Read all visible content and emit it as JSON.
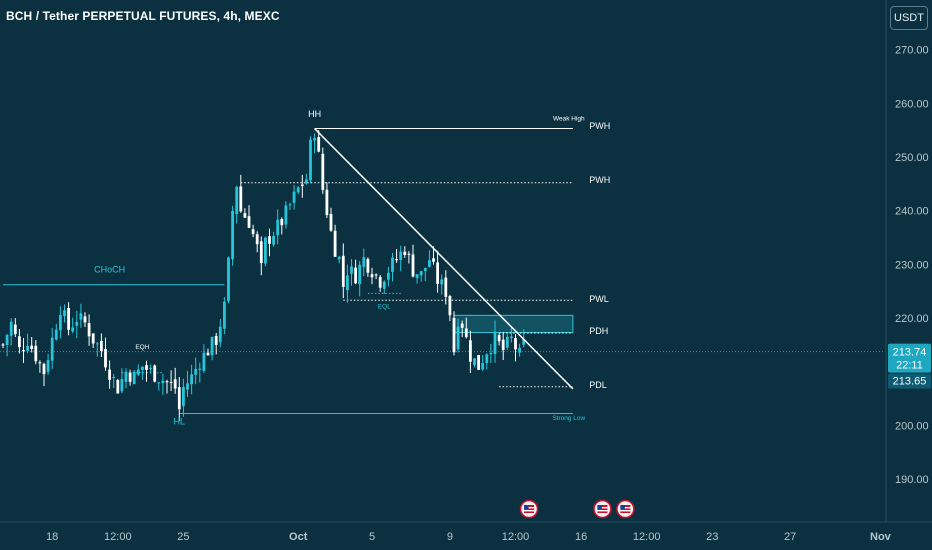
{
  "header": {
    "title": "BCH / Tether PERPETUAL FUTURES, 4h, MEXC",
    "currency": "USDT"
  },
  "colors": {
    "background": "#0b3040",
    "bull": "#26c6da",
    "bear": "#ffffff",
    "text": "#ffffff",
    "axis_text": "#b8c7cc",
    "price_tag_bg": "#1ea7c0",
    "zone_fill": "#1b6f7d"
  },
  "chart_data": {
    "type": "candlestick",
    "y_axis": {
      "ticks": [
        270,
        260,
        250,
        240,
        230,
        220,
        200,
        190
      ],
      "tick_labels": [
        "270.00",
        "260.00",
        "250.00",
        "240.00",
        "230.00",
        "220.00",
        "200.00",
        "190.00"
      ],
      "range": [
        182,
        280
      ]
    },
    "x_axis": {
      "ticks": [
        {
          "label": "18",
          "idx": 12
        },
        {
          "label": "12:00",
          "idx": 28
        },
        {
          "label": "25",
          "idx": 44
        },
        {
          "label": "Oct",
          "idx": 72
        },
        {
          "label": "5",
          "idx": 90
        },
        {
          "label": "9",
          "idx": 109
        },
        {
          "label": "12:00",
          "idx": 125
        },
        {
          "label": "16",
          "idx": 141
        },
        {
          "label": "12:00",
          "idx": 157
        },
        {
          "label": "23",
          "idx": 173
        },
        {
          "label": "27",
          "idx": 192
        },
        {
          "label": "Nov",
          "idx": 214
        }
      ]
    },
    "candle_anchors": [
      [
        0,
        215
      ],
      [
        2,
        219
      ],
      [
        4,
        214
      ],
      [
        6,
        216
      ],
      [
        8,
        213
      ],
      [
        10,
        210
      ],
      [
        12,
        216
      ],
      [
        14,
        222
      ],
      [
        16,
        218
      ],
      [
        18,
        220
      ],
      [
        20,
        219
      ],
      [
        22,
        216
      ],
      [
        24,
        214
      ],
      [
        26,
        210
      ],
      [
        28,
        207
      ],
      [
        30,
        210
      ],
      [
        32,
        209
      ],
      [
        34,
        211
      ],
      [
        36,
        210
      ],
      [
        38,
        209
      ],
      [
        40,
        208
      ],
      [
        42,
        207
      ],
      [
        43,
        203
      ],
      [
        44,
        207
      ],
      [
        46,
        209
      ],
      [
        48,
        212
      ],
      [
        50,
        214
      ],
      [
        52,
        216
      ],
      [
        54,
        222
      ],
      [
        55,
        230
      ],
      [
        56,
        240
      ],
      [
        57,
        245
      ],
      [
        58,
        240
      ],
      [
        60,
        238
      ],
      [
        62,
        233
      ],
      [
        63,
        229
      ],
      [
        64,
        234
      ],
      [
        66,
        236
      ],
      [
        68,
        238
      ],
      [
        70,
        241
      ],
      [
        72,
        244
      ],
      [
        74,
        246
      ],
      [
        75,
        252
      ],
      [
        76,
        255
      ],
      [
        77,
        250
      ],
      [
        78,
        244
      ],
      [
        79,
        240
      ],
      [
        80,
        236
      ],
      [
        81,
        233
      ],
      [
        82,
        231
      ],
      [
        83,
        226
      ],
      [
        84,
        229
      ],
      [
        86,
        228
      ],
      [
        88,
        231
      ],
      [
        90,
        229
      ],
      [
        92,
        227
      ],
      [
        94,
        229
      ],
      [
        96,
        231
      ],
      [
        98,
        233
      ],
      [
        100,
        229
      ],
      [
        102,
        228
      ],
      [
        104,
        231
      ],
      [
        106,
        227
      ],
      [
        108,
        225
      ],
      [
        109,
        221
      ],
      [
        110,
        214
      ],
      [
        111,
        220
      ],
      [
        112,
        219
      ],
      [
        113,
        216
      ],
      [
        114,
        213
      ],
      [
        116,
        211
      ],
      [
        118,
        214
      ],
      [
        120,
        216
      ],
      [
        122,
        214
      ],
      [
        124,
        216
      ],
      [
        126,
        213
      ],
      [
        127,
        215
      ]
    ],
    "annotations": {
      "labels": [
        {
          "text": "HH",
          "idx": 76,
          "price": 257.5
        },
        {
          "text": "HL",
          "idx": 43,
          "price": 200.2
        },
        {
          "text": "CHoCH",
          "idx": 26,
          "price": 228.5
        },
        {
          "text": "EQH",
          "idx": 34,
          "price": 214.2
        },
        {
          "text": "EQL",
          "idx": 93,
          "price": 221.8
        },
        {
          "text": "Weak High",
          "idx": 138,
          "price": 256.8
        },
        {
          "text": "Strong Low",
          "idx": 138,
          "price": 201.0
        },
        {
          "text": "PWH",
          "idx": 143,
          "price": 255.2
        },
        {
          "text": "PWH",
          "idx": 143,
          "price": 245.2
        },
        {
          "text": "PWL",
          "idx": 143,
          "price": 223.0
        },
        {
          "text": "PDH",
          "idx": 143,
          "price": 217.0
        },
        {
          "text": "PDL",
          "idx": 143,
          "price": 207.0
        }
      ],
      "levels": [
        {
          "name": "PWH",
          "price": 255.3,
          "from_idx": 76,
          "to_idx": 139,
          "style": "solid"
        },
        {
          "name": "PWH",
          "price": 245.2,
          "from_idx": 58,
          "to_idx": 139,
          "style": "dotted"
        },
        {
          "name": "PWL",
          "price": 223.3,
          "from_idx": 83,
          "to_idx": 139,
          "style": "dotted"
        },
        {
          "name": "PDH",
          "price": 217.2,
          "from_idx": 121,
          "to_idx": 139,
          "style": "dotted"
        },
        {
          "name": "PDL",
          "price": 207.2,
          "from_idx": 121,
          "to_idx": 139,
          "style": "dotted"
        },
        {
          "name": "Strong Low",
          "price": 202.2,
          "from_idx": 43,
          "to_idx": 139,
          "style": "solid"
        },
        {
          "name": "CHoCH",
          "price": 226.2,
          "from_idx": 0,
          "to_idx": 54,
          "style": "solid"
        },
        {
          "name": "EQH",
          "price": 209.8,
          "from_idx": 29,
          "to_idx": 39,
          "style": "dotted"
        },
        {
          "name": "EQL",
          "price": 224.6,
          "from_idx": 89,
          "to_idx": 97,
          "style": "dotted"
        }
      ],
      "trendline": {
        "from": [
          76,
          255.3
        ],
        "to": [
          139,
          206.8
        ]
      },
      "zone": {
        "from_idx": 110,
        "to_idx": 139,
        "low": 217.3,
        "high": 220.5
      }
    },
    "current_price": {
      "value": "213.74",
      "timer": "22:11",
      "secondary": "213.65",
      "price": 213.74
    }
  }
}
